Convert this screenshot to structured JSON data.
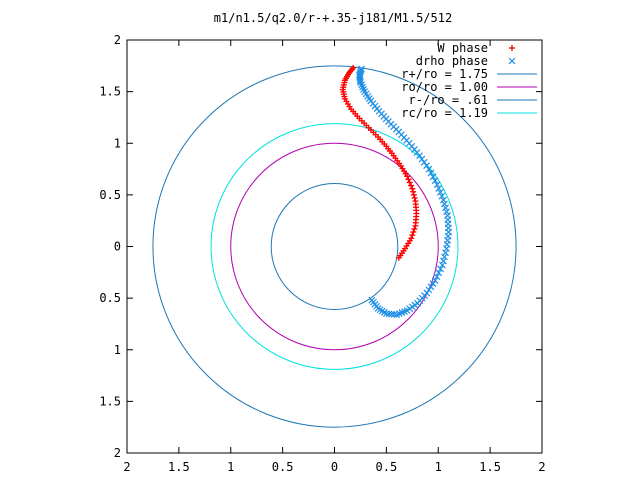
{
  "chart_data": {
    "type": "scatter",
    "title": "m1/n1.5/q2.0/r-+.35-j181/M1.5/512",
    "xlabel": "",
    "ylabel": "",
    "xlim": [
      -2,
      2
    ],
    "ylim": [
      -2,
      2
    ],
    "grid": false,
    "legend_position": "top-right",
    "x_ticks": [
      -2,
      -1.5,
      -1,
      -0.5,
      0,
      0.5,
      1,
      1.5,
      2
    ],
    "y_ticks": [
      -2,
      -1.5,
      -1,
      -0.5,
      0,
      0.5,
      1,
      1.5,
      2
    ],
    "x_tick_labels": [
      "2",
      "1.5",
      "1",
      "0.5",
      "0",
      "0.5",
      "1",
      "1.5",
      "2"
    ],
    "y_tick_labels": [
      "2",
      "1.5",
      "1",
      "0.5",
      "0",
      "0.5",
      "1",
      "1.5",
      "2"
    ],
    "series": [
      {
        "name": "W phase",
        "kind": "points",
        "marker": "plus",
        "color": "#ff0000",
        "points": [
          [
            0.62,
            -0.11
          ],
          [
            0.68,
            -0.02
          ],
          [
            0.74,
            0.08
          ],
          [
            0.78,
            0.2
          ],
          [
            0.79,
            0.32
          ],
          [
            0.78,
            0.44
          ],
          [
            0.75,
            0.56
          ],
          [
            0.7,
            0.68
          ],
          [
            0.64,
            0.78
          ],
          [
            0.57,
            0.88
          ],
          [
            0.5,
            0.97
          ],
          [
            0.42,
            1.06
          ],
          [
            0.33,
            1.15
          ],
          [
            0.24,
            1.24
          ],
          [
            0.16,
            1.33
          ],
          [
            0.1,
            1.43
          ],
          [
            0.08,
            1.52
          ],
          [
            0.1,
            1.61
          ],
          [
            0.14,
            1.68
          ],
          [
            0.18,
            1.73
          ]
        ]
      },
      {
        "name": "drho phase",
        "kind": "points",
        "marker": "x",
        "color": "#1e8fe6",
        "points": [
          [
            0.36,
            -0.52
          ],
          [
            0.42,
            -0.6
          ],
          [
            0.5,
            -0.65
          ],
          [
            0.6,
            -0.66
          ],
          [
            0.7,
            -0.62
          ],
          [
            0.8,
            -0.55
          ],
          [
            0.89,
            -0.45
          ],
          [
            0.97,
            -0.33
          ],
          [
            1.04,
            -0.18
          ],
          [
            1.08,
            -0.02
          ],
          [
            1.1,
            0.14
          ],
          [
            1.09,
            0.3
          ],
          [
            1.05,
            0.45
          ],
          [
            0.99,
            0.6
          ],
          [
            0.91,
            0.75
          ],
          [
            0.82,
            0.88
          ],
          [
            0.72,
            1.0
          ],
          [
            0.62,
            1.11
          ],
          [
            0.52,
            1.21
          ],
          [
            0.43,
            1.31
          ],
          [
            0.35,
            1.41
          ],
          [
            0.29,
            1.5
          ],
          [
            0.25,
            1.59
          ],
          [
            0.24,
            1.66
          ],
          [
            0.26,
            1.72
          ]
        ]
      },
      {
        "name": "r+/ro = 1.75",
        "kind": "circle",
        "radius": 1.75,
        "color": "#1f77b4"
      },
      {
        "name": "ro/ro = 1.00",
        "kind": "circle",
        "radius": 1.0,
        "color": "#b000b0"
      },
      {
        "name": "r-/ro = .61",
        "kind": "circle",
        "radius": 0.61,
        "color": "#1f77b4"
      },
      {
        "name": "rc/ro = 1.19",
        "kind": "circle",
        "radius": 1.19,
        "color": "#00e0e0"
      }
    ]
  }
}
